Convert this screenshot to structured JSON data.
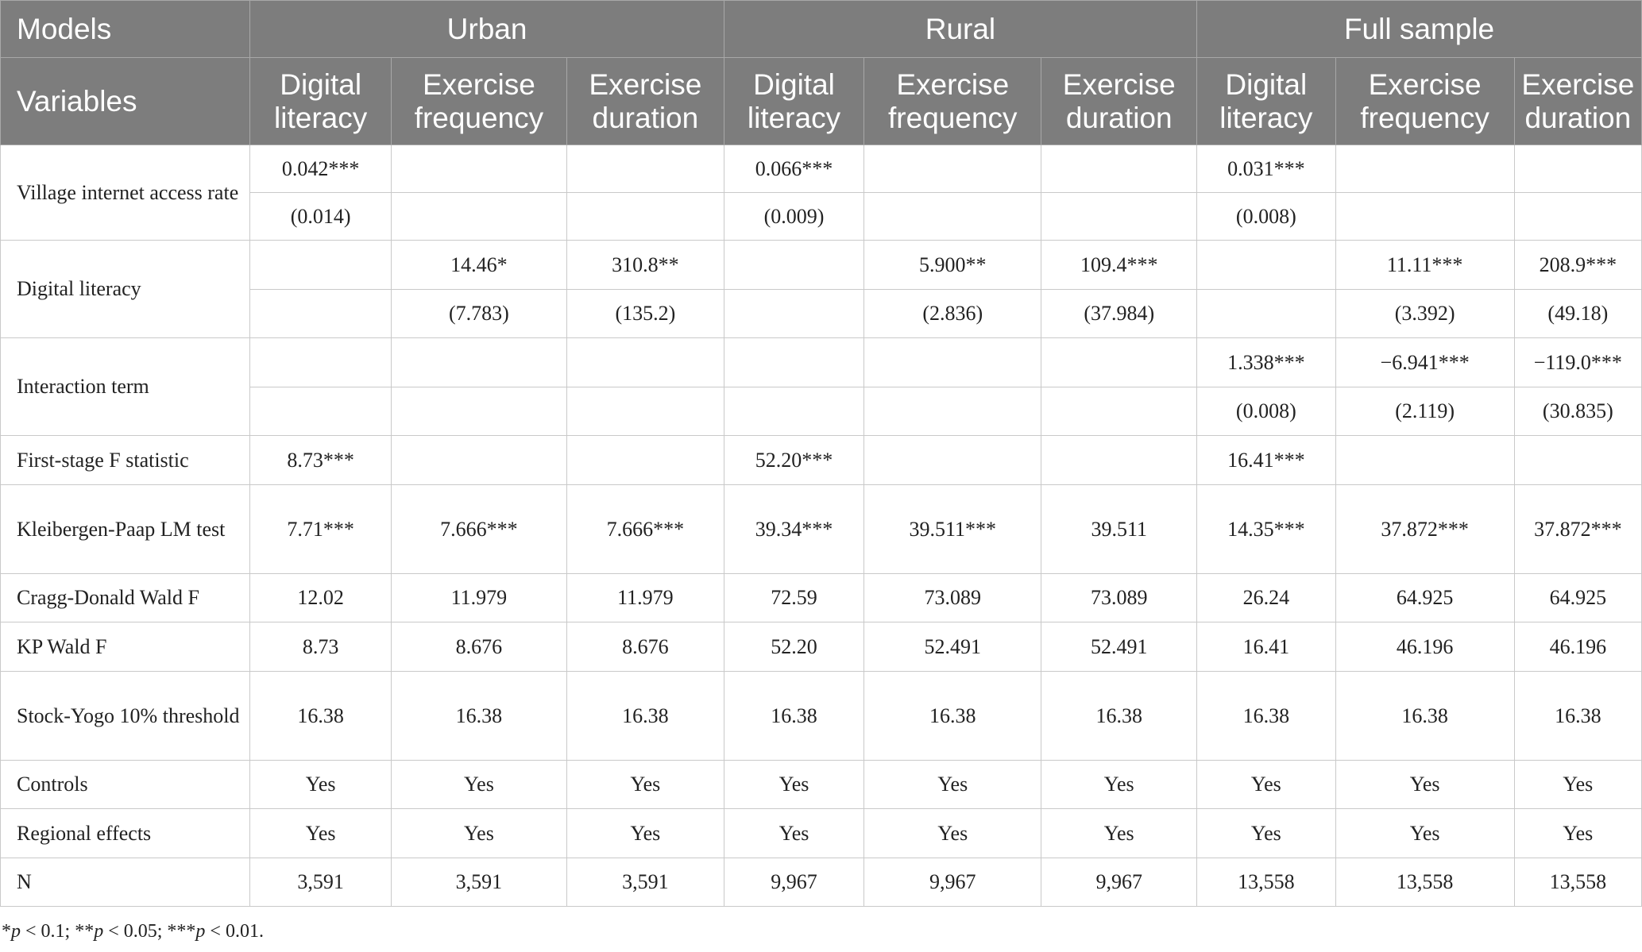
{
  "header": {
    "models_label": "Models",
    "groups": [
      "Urban",
      "Rural",
      "Full sample"
    ],
    "variables_label": "Variables",
    "columns": [
      [
        "Digital",
        "literacy"
      ],
      [
        "Exercise",
        "frequency"
      ],
      [
        "Exercise",
        "duration"
      ],
      [
        "Digital",
        "literacy"
      ],
      [
        "Exercise",
        "frequency"
      ],
      [
        "Exercise",
        "duration"
      ],
      [
        "Digital",
        "literacy"
      ],
      [
        "Exercise",
        "frequency"
      ],
      [
        "Exercise",
        "duration"
      ]
    ]
  },
  "rows": [
    {
      "label": "Village internet access rate",
      "h": 60,
      "span": 2,
      "cells": [
        "0.042***",
        "",
        "",
        "0.066***",
        "",
        "",
        "0.031***",
        "",
        ""
      ]
    },
    {
      "label": null,
      "h": 60,
      "cells": [
        "(0.014)",
        "",
        "",
        "(0.009)",
        "",
        "",
        "(0.008)",
        "",
        ""
      ]
    },
    {
      "label": "Digital literacy",
      "h": 62,
      "span": 2,
      "cells": [
        "",
        "14.46*",
        "310.8**",
        "",
        "5.900**",
        "109.4***",
        "",
        "11.11***",
        "208.9***"
      ]
    },
    {
      "label": null,
      "h": 61,
      "cells": [
        "",
        "(7.783)",
        "(135.2)",
        "",
        "(2.836)",
        "(37.984)",
        "",
        "(3.392)",
        "(49.18)"
      ]
    },
    {
      "label": "Interaction term",
      "h": 62,
      "span": 2,
      "cells": [
        "",
        "",
        "",
        "",
        "",
        "",
        "1.338***",
        "−6.941***",
        "−119.0***"
      ]
    },
    {
      "label": null,
      "h": 61,
      "cells": [
        "",
        "",
        "",
        "",
        "",
        "",
        "(0.008)",
        "(2.119)",
        "(30.835)"
      ]
    },
    {
      "label": "First-stage F statistic",
      "h": 62,
      "cells": [
        "8.73***",
        "",
        "",
        "52.20***",
        "",
        "",
        "16.41***",
        "",
        ""
      ]
    },
    {
      "label": "Kleibergen-Paap LM test",
      "h": 112,
      "cells": [
        "7.71***",
        "7.666***",
        "7.666***",
        "39.34***",
        "39.511***",
        "39.511",
        "14.35***",
        "37.872***",
        "37.872***"
      ]
    },
    {
      "label": "Cragg-Donald Wald F",
      "h": 61,
      "cells": [
        "12.02",
        "11.979",
        "11.979",
        "72.59",
        "73.089",
        "73.089",
        "26.24",
        "64.925",
        "64.925"
      ]
    },
    {
      "label": "KP Wald F",
      "h": 62,
      "cells": [
        "8.73",
        "8.676",
        "8.676",
        "52.20",
        "52.491",
        "52.491",
        "16.41",
        "46.196",
        "46.196"
      ]
    },
    {
      "label": "Stock-Yogo 10% threshold",
      "h": 112,
      "cells": [
        "16.38",
        "16.38",
        "16.38",
        "16.38",
        "16.38",
        "16.38",
        "16.38",
        "16.38",
        "16.38"
      ]
    },
    {
      "label": "Controls",
      "h": 61,
      "cells": [
        "Yes",
        "Yes",
        "Yes",
        "Yes",
        "Yes",
        "Yes",
        "Yes",
        "Yes",
        "Yes"
      ]
    },
    {
      "label": "Regional effects",
      "h": 62,
      "cells": [
        "Yes",
        "Yes",
        "Yes",
        "Yes",
        "Yes",
        "Yes",
        "Yes",
        "Yes",
        "Yes"
      ]
    },
    {
      "label": "N",
      "h": 61,
      "cells": [
        "3,591",
        "3,591",
        "3,591",
        "9,967",
        "9,967",
        "9,967",
        "13,558",
        "13,558",
        "13,558"
      ]
    }
  ],
  "footnote": [
    {
      "sym": "*",
      "var": "p",
      "rest": " < 0.1; "
    },
    {
      "sym": "**",
      "var": "p",
      "rest": " < 0.05; "
    },
    {
      "sym": "***",
      "var": "p",
      "rest": " < 0.01."
    }
  ]
}
